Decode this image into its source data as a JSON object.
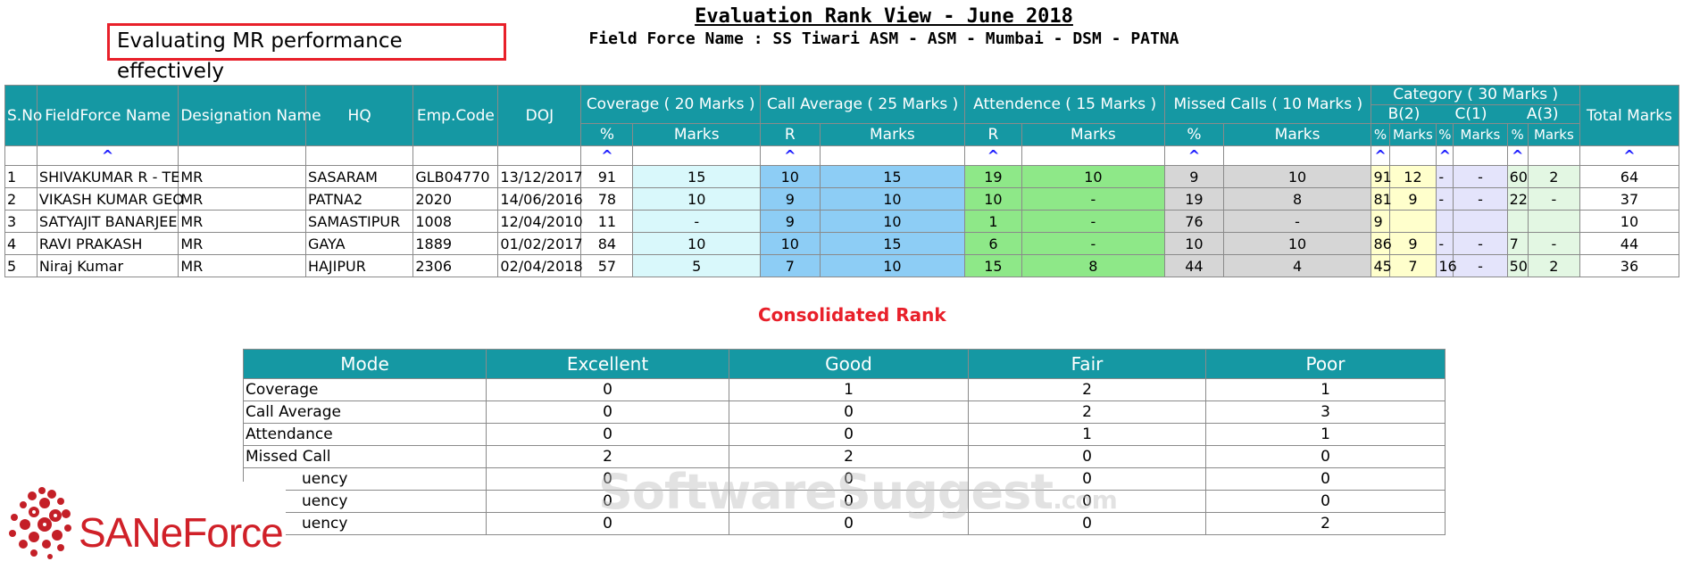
{
  "callout": "Evaluating MR performance effectively",
  "title": "Evaluation Rank View - June 2018",
  "subtitle": "Field Force Name : SS Tiwari ASM - ASM - Mumbai - DSM - PATNA",
  "headers": {
    "sno": "S.No",
    "name": "FieldForce Name",
    "designation": "Designation Name",
    "hq": "HQ",
    "empcode": "Emp.Code",
    "doj": "DOJ",
    "coverage": "Coverage ( 20 Marks )",
    "callavg": "Call Average ( 25 Marks )",
    "attendance": "Attendence ( 15 Marks )",
    "missed": "Missed Calls ( 10 Marks )",
    "category": "Category ( 30 Marks )",
    "total": "Total Marks",
    "cat_b": "B(2)",
    "cat_c": "C(1)",
    "cat_a": "A(3)",
    "pct": "%",
    "marks": "Marks",
    "r": "R"
  },
  "sort_glyph": "^",
  "rows": [
    {
      "sno": "1",
      "name": "SHIVAKUMAR R - TE",
      "designation": "MR",
      "hq": "SASARAM",
      "empcode": "GLB04770",
      "doj": "13/12/2017",
      "cov_pct": "91",
      "cov_marks": "15",
      "call_r": "10",
      "call_marks": "15",
      "att_r": "19",
      "att_marks": "10",
      "mis_pct": "9",
      "mis_marks": "10",
      "b_pct": "91",
      "b_marks": "12",
      "c_pct": "-",
      "c_marks": "-",
      "a_pct": "60",
      "a_marks": "2",
      "total": "64"
    },
    {
      "sno": "2",
      "name": "VIKASH KUMAR GEO",
      "designation": "MR",
      "hq": "PATNA2",
      "empcode": "2020",
      "doj": "14/06/2016",
      "cov_pct": "78",
      "cov_marks": "10",
      "call_r": "9",
      "call_marks": "10",
      "att_r": "10",
      "att_marks": "-",
      "mis_pct": "19",
      "mis_marks": "8",
      "b_pct": "81",
      "b_marks": "9",
      "c_pct": "-",
      "c_marks": "-",
      "a_pct": "22",
      "a_marks": "-",
      "total": "37"
    },
    {
      "sno": "3",
      "name": "SATYAJIT BANARJEE",
      "designation": "MR",
      "hq": "SAMASTIPUR",
      "empcode": "1008",
      "doj": "12/04/2010",
      "cov_pct": "11",
      "cov_marks": "-",
      "call_r": "9",
      "call_marks": "10",
      "att_r": "1",
      "att_marks": "-",
      "mis_pct": "76",
      "mis_marks": "-",
      "b_pct": "9",
      "b_marks": "",
      "c_pct": "",
      "c_marks": "",
      "a_pct": "",
      "a_marks": "",
      "total": "10"
    },
    {
      "sno": "4",
      "name": "RAVI PRAKASH",
      "designation": "MR",
      "hq": "GAYA",
      "empcode": "1889",
      "doj": "01/02/2017",
      "cov_pct": "84",
      "cov_marks": "10",
      "call_r": "10",
      "call_marks": "15",
      "att_r": "6",
      "att_marks": "-",
      "mis_pct": "10",
      "mis_marks": "10",
      "b_pct": "86",
      "b_marks": "9",
      "c_pct": "-",
      "c_marks": "-",
      "a_pct": "7",
      "a_marks": "-",
      "total": "44"
    },
    {
      "sno": "5",
      "name": "Niraj Kumar",
      "designation": "MR",
      "hq": "HAJIPUR",
      "empcode": "2306",
      "doj": "02/04/2018",
      "cov_pct": "57",
      "cov_marks": "5",
      "call_r": "7",
      "call_marks": "10",
      "att_r": "15",
      "att_marks": "8",
      "mis_pct": "44",
      "mis_marks": "4",
      "b_pct": "45",
      "b_marks": "7",
      "c_pct": "16",
      "c_marks": "-",
      "a_pct": "50",
      "a_marks": "2",
      "total": "36"
    }
  ],
  "consolidated_title": "Consolidated Rank",
  "rank_headers": [
    "Mode",
    "Excellent",
    "Good",
    "Fair",
    "Poor"
  ],
  "rank_rows": [
    {
      "mode": "Coverage",
      "excellent": "0",
      "good": "1",
      "fair": "2",
      "poor": "1"
    },
    {
      "mode": "Call Average",
      "excellent": "0",
      "good": "0",
      "fair": "2",
      "poor": "3"
    },
    {
      "mode": "Attendance",
      "excellent": "0",
      "good": "0",
      "fair": "1",
      "poor": "1"
    },
    {
      "mode": "Missed Call",
      "excellent": "2",
      "good": "2",
      "fair": "0",
      "poor": "0"
    },
    {
      "mode": "uency",
      "excellent": "0",
      "good": "0",
      "fair": "0",
      "poor": "0"
    },
    {
      "mode": "uency",
      "excellent": "0",
      "good": "0",
      "fair": "0",
      "poor": "0"
    },
    {
      "mode": "uency",
      "excellent": "0",
      "good": "0",
      "fair": "0",
      "poor": "2"
    }
  ],
  "watermark": "SoftwareSuggest",
  "watermark_suffix": ".com",
  "logo_text": "SANeForce",
  "colors": {
    "header_teal": "#1598a3",
    "callout_red": "#e8202a",
    "coverage_marks_bg": "#d9f8fb",
    "call_bg": "#8dcdf5",
    "attendance_bg": "#8ee888",
    "missed_bg": "#d6d6d6",
    "cat_b_bg": "#ffffcc",
    "cat_c_bg": "#e4e4fb",
    "cat_a_bg": "#e3f7e3"
  }
}
